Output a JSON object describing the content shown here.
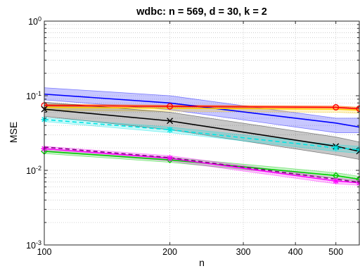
{
  "chart_data": {
    "type": "line",
    "title": "wdbc: n = 569, d = 30, k = 2",
    "xlabel": "n",
    "ylabel": "MSE",
    "xscale": "log",
    "yscale": "log",
    "xlim": [
      100,
      569
    ],
    "ylim": [
      0.001,
      1
    ],
    "grid": "major-and-minor dotted",
    "x": [
      100,
      200,
      500,
      569
    ],
    "xticks": [
      {
        "value": 100,
        "label": "100"
      },
      {
        "value": 200,
        "label": "200"
      },
      {
        "value": 300,
        "label": "300"
      },
      {
        "value": 400,
        "label": "400"
      },
      {
        "value": 500,
        "label": "500"
      }
    ],
    "yticks": [
      {
        "value": 0.001,
        "base": "10",
        "exp": "-3"
      },
      {
        "value": 0.01,
        "base": "10",
        "exp": "-2"
      },
      {
        "value": 0.1,
        "base": "10",
        "exp": "-1"
      },
      {
        "value": 1,
        "base": "10",
        "exp": "0"
      }
    ],
    "series": [
      {
        "color": "#0000ff",
        "style": "solid",
        "marker": "none",
        "values": [
          0.105,
          0.08,
          0.043,
          0.038
        ],
        "band": {
          "lower": [
            0.088,
            0.065,
            0.032,
            0.032
          ],
          "upper": [
            0.128,
            0.1,
            0.05,
            0.05
          ]
        }
      },
      {
        "color": "#ff0000",
        "style": "solid",
        "marker": "circle",
        "values": [
          0.074,
          0.072,
          0.07,
          0.067
        ],
        "band": {
          "lower": [
            0.071,
            0.069,
            0.068,
            0.065
          ],
          "upper": [
            0.077,
            0.075,
            0.073,
            0.07
          ]
        }
      },
      {
        "color": "#ffcc00",
        "style": "solid",
        "marker": "none",
        "values": [
          0.07,
          0.068,
          0.066,
          0.064
        ],
        "band": {
          "lower": [
            0.064,
            0.062,
            0.06,
            0.058
          ],
          "upper": [
            0.076,
            0.074,
            0.072,
            0.07
          ]
        }
      },
      {
        "color": "#000000",
        "style": "solid",
        "marker": "x",
        "values": [
          0.066,
          0.046,
          0.021,
          0.018
        ],
        "band": {
          "lower": [
            0.053,
            0.035,
            0.016,
            0.014
          ],
          "upper": [
            0.082,
            0.06,
            0.028,
            0.024
          ]
        }
      },
      {
        "color": "#00e5e5",
        "style": "dashed",
        "marker": "asterisk",
        "values": [
          0.048,
          0.035,
          0.02,
          0.019
        ],
        "band": {
          "lower": [
            0.045,
            0.032,
            0.018,
            0.017
          ],
          "upper": [
            0.051,
            0.038,
            0.022,
            0.021
          ]
        }
      },
      {
        "color": "#00cc00",
        "style": "solid",
        "marker": "diamond",
        "values": [
          0.018,
          0.0138,
          0.0085,
          0.0076
        ],
        "band": {
          "lower": [
            0.0168,
            0.0128,
            0.0078,
            0.007
          ],
          "upper": [
            0.0193,
            0.0149,
            0.0093,
            0.0083
          ]
        }
      },
      {
        "color": "#ff00ff",
        "style": "solid",
        "marker": "asterisk",
        "values": [
          0.0195,
          0.0145,
          0.0072,
          0.0068
        ],
        "band": {
          "lower": [
            0.0182,
            0.0134,
            0.0066,
            0.0063
          ],
          "upper": [
            0.021,
            0.0157,
            0.0079,
            0.0074
          ]
        }
      },
      {
        "color": "#800080",
        "style": "dashed",
        "marker": "none",
        "values": [
          0.0205,
          0.0148,
          0.0076,
          0.0069
        ]
      }
    ]
  }
}
